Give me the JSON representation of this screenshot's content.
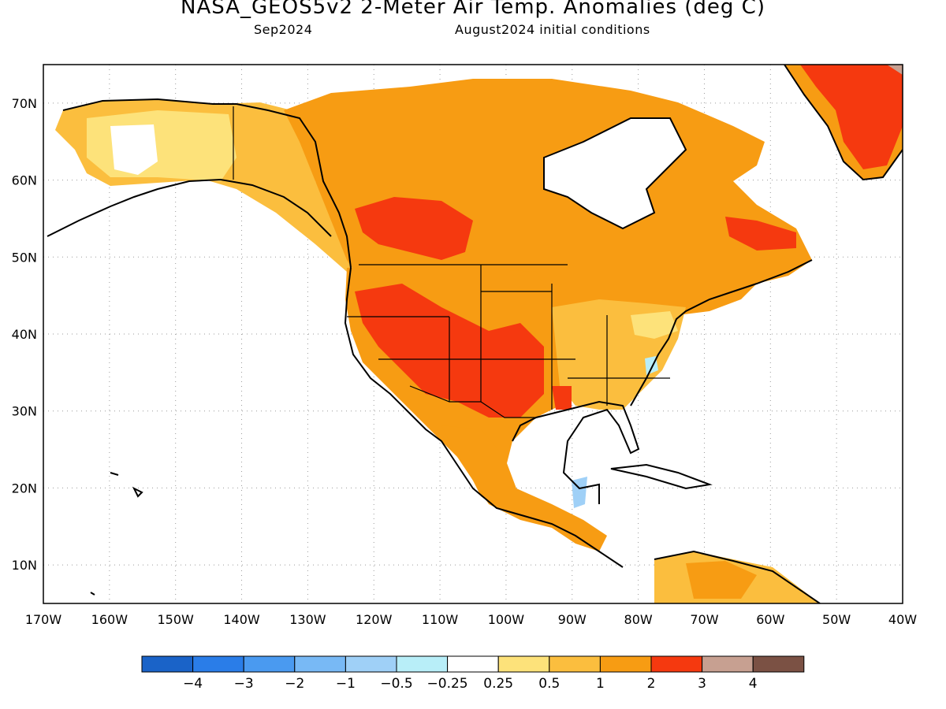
{
  "header": {
    "title": "NASA_GEOS5v2 2-Meter Air Temp. Anomalies (deg C)",
    "valid_month": "Sep2024",
    "init_conditions": "August2024 initial conditions"
  },
  "map": {
    "lon_range": [
      -170,
      -40
    ],
    "lat_range": [
      5,
      75
    ],
    "lon_labels": [
      "170W",
      "160W",
      "150W",
      "140W",
      "130W",
      "120W",
      "110W",
      "100W",
      "90W",
      "80W",
      "70W",
      "60W",
      "50W",
      "40W"
    ],
    "lat_labels": [
      "10N",
      "20N",
      "30N",
      "40N",
      "50N",
      "60N",
      "70N"
    ],
    "gridlines": true
  },
  "colorbar": {
    "labels": [
      "-4",
      "-3",
      "-2",
      "-1",
      "-0.5",
      "-0.25",
      "0.25",
      "0.5",
      "1",
      "2",
      "3",
      "4"
    ],
    "colors": [
      "#1a63c8",
      "#2a7de8",
      "#4a9af0",
      "#78b9f5",
      "#9fd0f7",
      "#b8eef8",
      "#ffffff",
      "#fde27a",
      "#fbbe3e",
      "#f79c13",
      "#f5390f",
      "#c7a091",
      "#7b5144"
    ]
  }
}
